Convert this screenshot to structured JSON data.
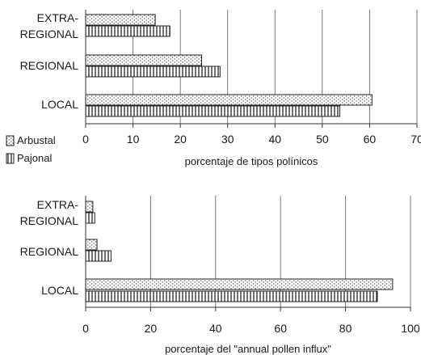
{
  "legend": {
    "items": [
      {
        "label": "Arbustal",
        "pattern": "dots"
      },
      {
        "label": "Pajonal",
        "pattern": "vlines"
      }
    ]
  },
  "chart_data": [
    {
      "type": "bar",
      "orientation": "horizontal",
      "categories": [
        "EXTRA-REGIONAL",
        "REGIONAL",
        "LOCAL"
      ],
      "category_lines": [
        [
          "EXTRA-",
          "REGIONAL"
        ],
        [
          "REGIONAL"
        ],
        [
          "LOCAL"
        ]
      ],
      "series": [
        {
          "name": "Arbustal",
          "values": [
            14.7,
            24.5,
            60.5
          ]
        },
        {
          "name": "Pajonal",
          "values": [
            17.8,
            28.4,
            53.7
          ]
        }
      ],
      "xlim": [
        0,
        70
      ],
      "xticks": [
        0,
        10,
        20,
        30,
        40,
        50,
        60,
        70
      ],
      "xlabel": "porcentaje de tipos polínicos",
      "grid": "vertical"
    },
    {
      "type": "bar",
      "orientation": "horizontal",
      "categories": [
        "EXTRA-REGIONAL",
        "REGIONAL",
        "LOCAL"
      ],
      "category_lines": [
        [
          "EXTRA-",
          "REGIONAL"
        ],
        [
          "REGIONAL"
        ],
        [
          "LOCAL"
        ]
      ],
      "series": [
        {
          "name": "Arbustal",
          "values": [
            2.2,
            3.5,
            94.5
          ]
        },
        {
          "name": "Pajonal",
          "values": [
            2.8,
            7.8,
            89.8
          ]
        }
      ],
      "xlim": [
        0,
        100
      ],
      "xticks": [
        0,
        20,
        40,
        60,
        80,
        100
      ],
      "xlabel": "porcentaje del \"annual pollen influx\"",
      "grid": "vertical"
    }
  ]
}
